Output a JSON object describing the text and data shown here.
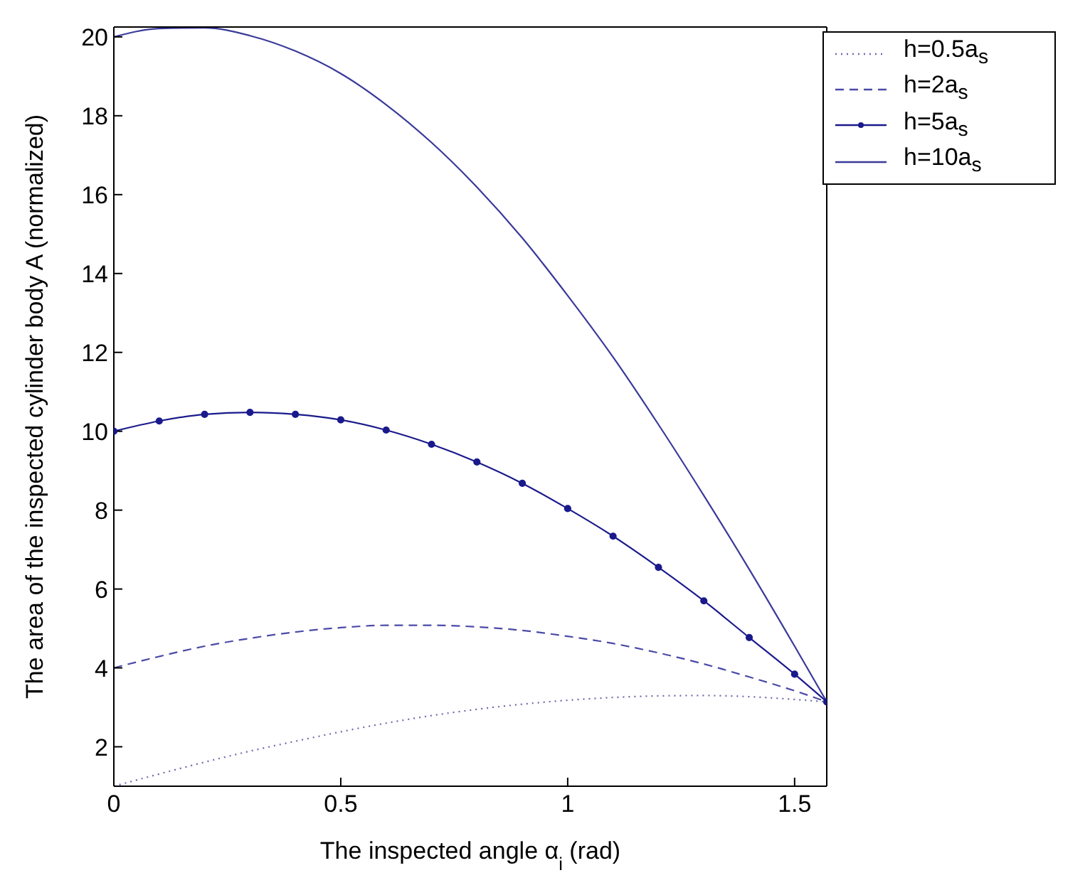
{
  "chart_data": {
    "type": "line",
    "xlabel": "The inspected angle α$_{i}$ (rad)",
    "ylabel": "The area of the inspected cylinder body A (normalized)",
    "x": [
      0,
      0.1,
      0.2,
      0.3,
      0.4,
      0.5,
      0.6,
      0.7,
      0.8,
      0.9,
      1.0,
      1.1,
      1.2,
      1.3,
      1.4,
      1.5,
      1.5708
    ],
    "series": [
      {
        "name": "h=0.5a$_{s}$",
        "color": "#6b6bb0",
        "line_style": "dotted",
        "marker": "none",
        "values": [
          1,
          1.31,
          1.61,
          1.89,
          2.14,
          2.38,
          2.6,
          2.79,
          2.95,
          3.08,
          3.18,
          3.25,
          3.29,
          3.3,
          3.27,
          3.2,
          3.14
        ]
      },
      {
        "name": "h=2a$_{s}$",
        "color": "#4a4aa8",
        "line_style": "dashed",
        "marker": "none",
        "values": [
          4,
          4.29,
          4.55,
          4.75,
          4.91,
          5.02,
          5.08,
          5.08,
          5.04,
          4.95,
          4.8,
          4.62,
          4.38,
          4.1,
          3.77,
          3.42,
          3.14
        ]
      },
      {
        "name": "h=5a$_{s}$",
        "color": "#1a1a8c",
        "line_style": "solid",
        "marker": "circle",
        "values": [
          10,
          10.26,
          10.43,
          10.48,
          10.43,
          10.29,
          10.03,
          9.67,
          9.22,
          8.68,
          8.04,
          7.34,
          6.55,
          5.7,
          4.77,
          3.84,
          3.14
        ]
      },
      {
        "name": "h=10a$_{s}$",
        "color": "#3a3a9a",
        "line_style": "solid",
        "marker": "none",
        "values": [
          20,
          20.21,
          20.23,
          20.03,
          19.64,
          19.07,
          18.28,
          17.32,
          16.19,
          14.9,
          13.44,
          11.88,
          10.17,
          8.37,
          6.5,
          4.55,
          3.14
        ]
      }
    ],
    "xlim": [
      0,
      1.5708
    ],
    "xticks": [
      0,
      0.5,
      1,
      1.5
    ],
    "ylim": [
      1,
      20.25
    ],
    "yticks": [
      2,
      4,
      6,
      8,
      10,
      12,
      14,
      16,
      18,
      20
    ],
    "grid": false,
    "legend": "top right"
  }
}
